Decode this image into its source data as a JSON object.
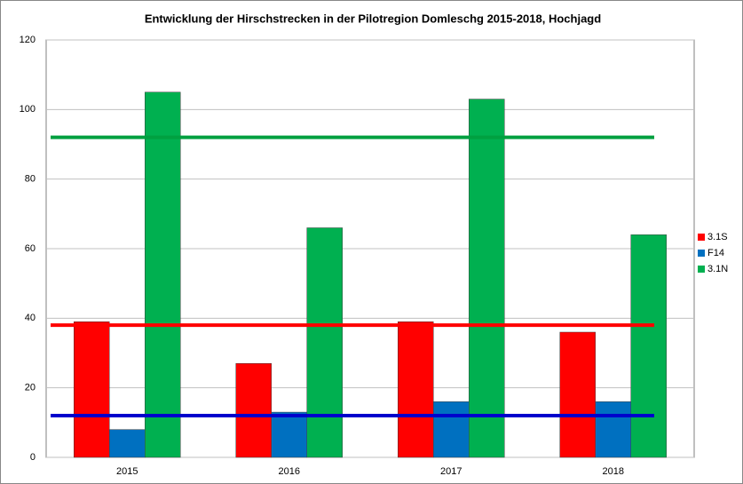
{
  "chart_data": {
    "type": "bar",
    "title": "Entwicklung der Hirschstrecken in der Pilotregion Domleschg 2015-2018, Hochjagd",
    "categories": [
      "2015",
      "2016",
      "2017",
      "2018"
    ],
    "series": [
      {
        "name": "3.1S",
        "color": "#ff0000",
        "values": [
          39,
          27,
          39,
          36
        ]
      },
      {
        "name": "F14",
        "color": "#0070c0",
        "values": [
          8,
          13,
          16,
          16
        ]
      },
      {
        "name": "3.1N",
        "color": "#00b050",
        "values": [
          105,
          66,
          103,
          64
        ]
      }
    ],
    "reference_lines": [
      {
        "color": "#ff0000",
        "value": 38
      },
      {
        "color": "#0000cc",
        "value": 12
      },
      {
        "color": "#00a040",
        "value": 92
      }
    ],
    "ylim": [
      0,
      120
    ],
    "yticks": [
      0,
      20,
      40,
      60,
      80,
      100,
      120
    ],
    "grid": true
  }
}
